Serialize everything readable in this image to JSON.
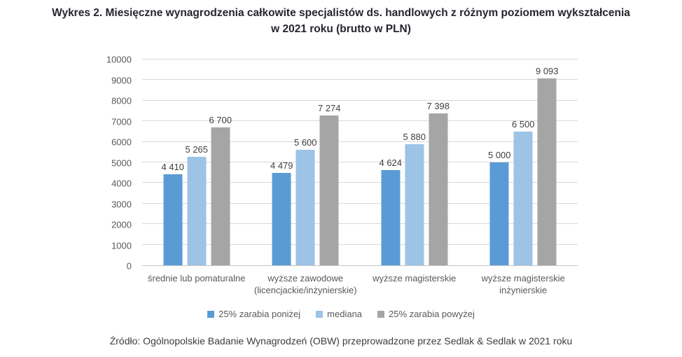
{
  "header": {
    "title_line1": "Wykres 2. Miesięczne wynagrodzenia całkowite specjalistów ds. handlowych z różnym poziomem wykształcenia",
    "title_line2": "w 2021 roku (brutto w PLN)"
  },
  "chart_data": {
    "type": "bar",
    "title": "Wykres 2. Miesięczne wynagrodzenia całkowite specjalistów ds. handlowych z różnym poziomem wykształcenia w 2021 roku (brutto w PLN)",
    "categories": [
      "średnie lub pomaturalne",
      "wyższe zawodowe (licencjackie/inżynierskie)",
      "wyższe magisterskie",
      "wyższe magisterskie inżynierskie"
    ],
    "series": [
      {
        "name": "25% zarabia poniżej",
        "color": "#5B9BD5",
        "values": [
          4410,
          4479,
          4624,
          5000
        ],
        "labels": [
          "4 410",
          "4 479",
          "4 624",
          "5 000"
        ]
      },
      {
        "name": "mediana",
        "color": "#9DC3E6",
        "values": [
          5265,
          5600,
          5880,
          6500
        ],
        "labels": [
          "5 265",
          "5 600",
          "5 880",
          "6 500"
        ]
      },
      {
        "name": "25% zarabia powyżej",
        "color": "#A5A5A5",
        "values": [
          6700,
          7274,
          7398,
          9093
        ],
        "labels": [
          "6 700",
          "7 274",
          "7 398",
          "9 093"
        ]
      }
    ],
    "xlabel": "",
    "ylabel": "",
    "ylim": [
      0,
      10000
    ],
    "yticks": [
      "0",
      "1000",
      "2000",
      "3000",
      "4000",
      "5000",
      "6000",
      "7000",
      "8000",
      "9000",
      "10000"
    ],
    "grid": true,
    "legend_position": "bottom"
  },
  "footer": {
    "source": "Źródło: Ogólnopolskie Badanie Wynagrodzeń (OBW) przeprowadzone przez Sedlak & Sedlak w 2021 roku"
  }
}
